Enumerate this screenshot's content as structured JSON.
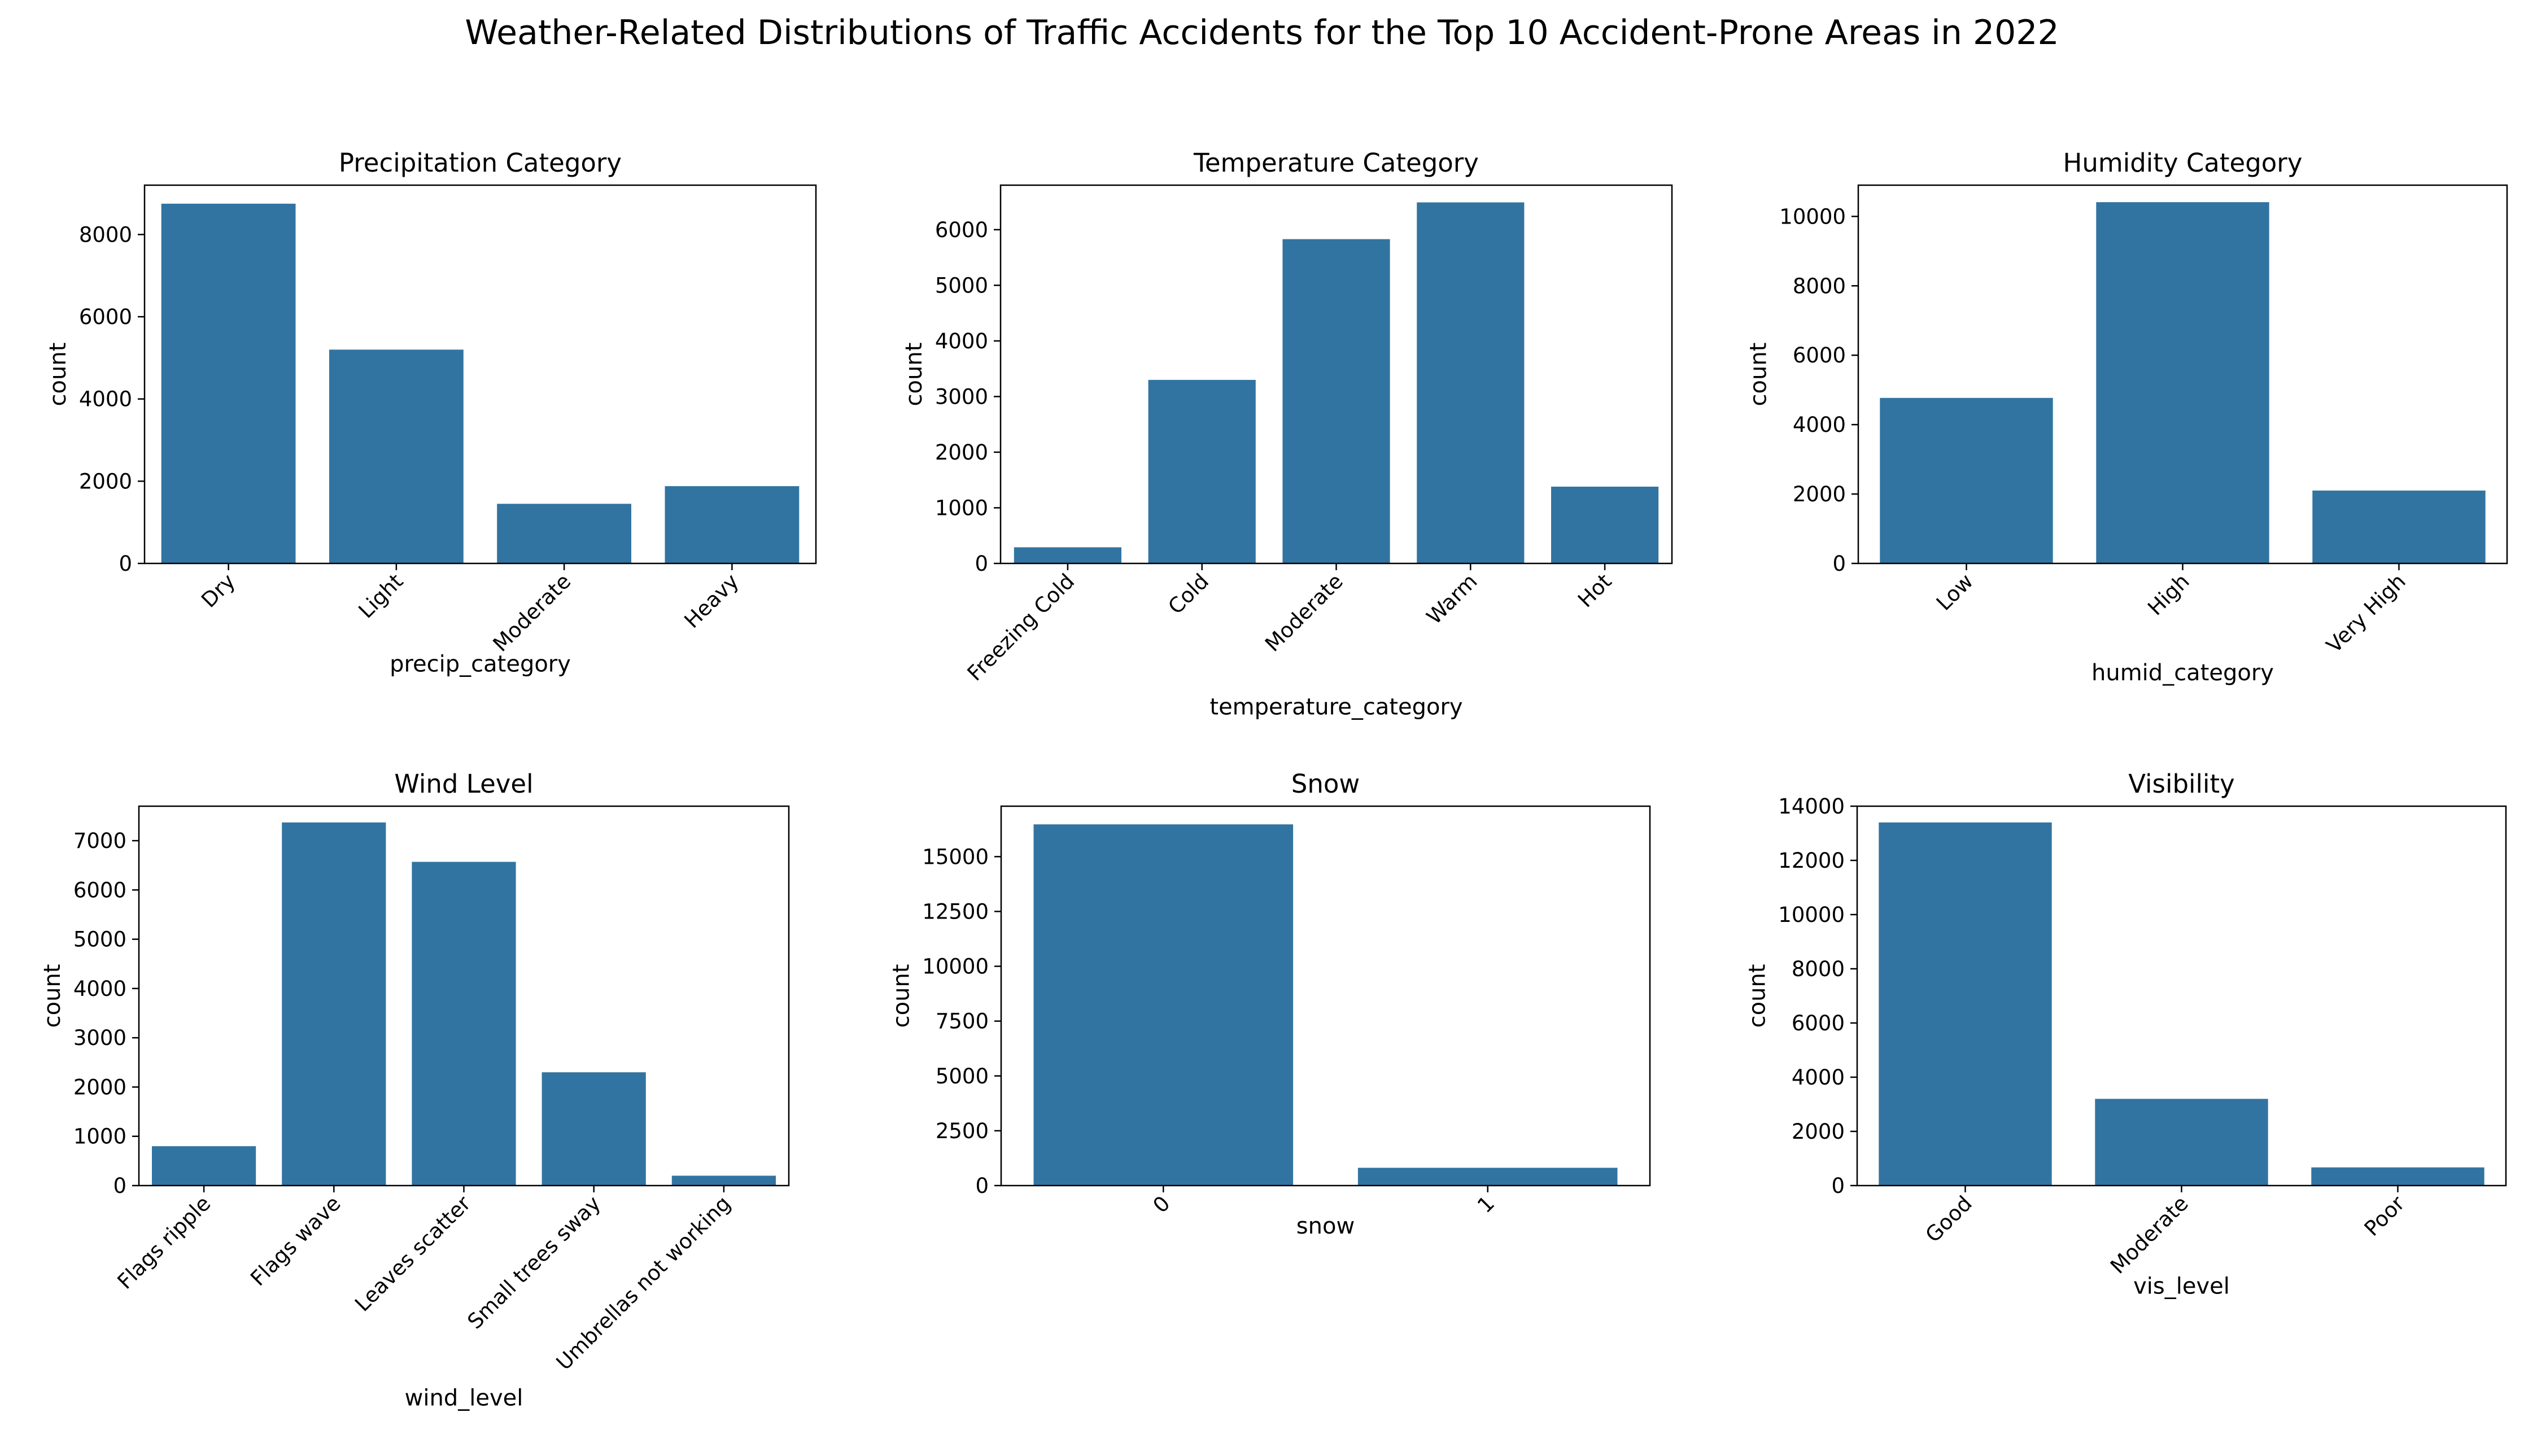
{
  "title": "Weather-Related Distributions of Traffic Accidents for the Top 10 Accident-Prone Areas in 2022",
  "colors": {
    "bar": "#3274a1",
    "axis": "#000000",
    "background": "#ffffff"
  },
  "chart_data": [
    {
      "type": "bar",
      "title": "Precipitation Category",
      "xlabel": "precip_category",
      "ylabel": "count",
      "categories": [
        "Dry",
        "Light",
        "Moderate",
        "Heavy"
      ],
      "values": [
        8750,
        5200,
        1450,
        1880
      ],
      "ylim": [
        0,
        9200
      ],
      "yticks": [
        0,
        2000,
        4000,
        6000,
        8000
      ],
      "ytick_labels": [
        "0",
        "2000",
        "4000",
        "6000",
        "8000"
      ],
      "xtick_rotation": 45
    },
    {
      "type": "bar",
      "title": "Temperature Category",
      "xlabel": "temperature_category",
      "ylabel": "count",
      "categories": [
        "Freezing Cold",
        "Cold",
        "Moderate",
        "Warm",
        "Hot"
      ],
      "values": [
        290,
        3300,
        5830,
        6490,
        1380
      ],
      "ylim": [
        0,
        6800
      ],
      "yticks": [
        0,
        1000,
        2000,
        3000,
        4000,
        5000,
        6000
      ],
      "ytick_labels": [
        "0",
        "1000",
        "2000",
        "3000",
        "4000",
        "5000",
        "6000"
      ],
      "xtick_rotation": 45
    },
    {
      "type": "bar",
      "title": "Humidity Category",
      "xlabel": "humid_category",
      "ylabel": "count",
      "categories": [
        "Low",
        "High",
        "Very High"
      ],
      "values": [
        4770,
        10410,
        2100
      ],
      "ylim": [
        0,
        10900
      ],
      "yticks": [
        0,
        2000,
        4000,
        6000,
        8000,
        10000
      ],
      "ytick_labels": [
        "0",
        "2000",
        "4000",
        "6000",
        "8000",
        "10000"
      ],
      "xtick_rotation": 45
    },
    {
      "type": "bar",
      "title": "Wind Level",
      "xlabel": "wind_level",
      "ylabel": "count",
      "categories": [
        "Flags ripple",
        "Flags wave",
        "Leaves scatter",
        "Small trees sway",
        "Umbrellas not working"
      ],
      "values": [
        800,
        7370,
        6570,
        2300,
        200
      ],
      "ylim": [
        0,
        7700
      ],
      "yticks": [
        0,
        1000,
        2000,
        3000,
        4000,
        5000,
        6000,
        7000
      ],
      "ytick_labels": [
        "0",
        "1000",
        "2000",
        "3000",
        "4000",
        "5000",
        "6000",
        "7000"
      ],
      "xtick_rotation": 45
    },
    {
      "type": "bar",
      "title": "Snow",
      "xlabel": "snow",
      "ylabel": "count",
      "categories": [
        "0",
        "1"
      ],
      "values": [
        16470,
        810
      ],
      "ylim": [
        0,
        17300
      ],
      "yticks": [
        0,
        2500,
        5000,
        7500,
        10000,
        12500,
        15000
      ],
      "ytick_labels": [
        "0",
        "2500",
        "5000",
        "7500",
        "10000",
        "12500",
        "15000"
      ],
      "xtick_rotation": 45
    },
    {
      "type": "bar",
      "title": "Visibility",
      "xlabel": "vis_level",
      "ylabel": "count",
      "categories": [
        "Good",
        "Moderate",
        "Poor"
      ],
      "values": [
        13400,
        3200,
        670
      ],
      "ylim": [
        0,
        14000
      ],
      "yticks": [
        0,
        2000,
        4000,
        6000,
        8000,
        10000,
        12000,
        14000
      ],
      "ytick_labels": [
        "0",
        "2000",
        "4000",
        "6000",
        "8000",
        "10000",
        "12000",
        "14000"
      ],
      "xtick_rotation": 45
    }
  ]
}
